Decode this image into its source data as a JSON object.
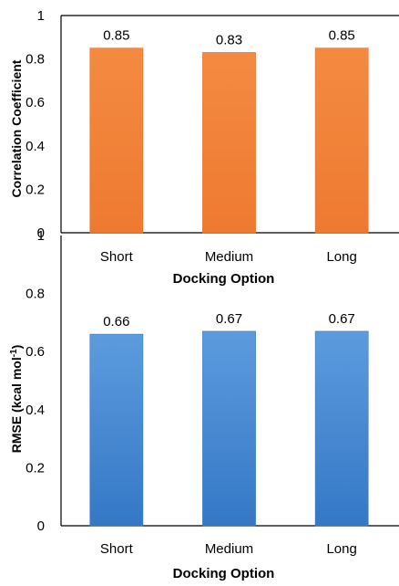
{
  "chart_data": [
    {
      "type": "bar",
      "categories": [
        "Short",
        "Medium",
        "Long"
      ],
      "values": [
        0.85,
        0.83,
        0.85
      ],
      "data_labels": [
        "0.85",
        "0.83",
        "0.85"
      ],
      "y_ticks": [
        "0",
        "0.2",
        "0.4",
        "0.6",
        "0.8",
        "1"
      ],
      "ylim": [
        0,
        1
      ],
      "xlabel": "Docking Option",
      "ylabel": "Correlation Coefficient",
      "bar_color": "#F0823A",
      "grid": false,
      "legend": "none"
    },
    {
      "type": "bar",
      "categories": [
        "Short",
        "Medium",
        "Long"
      ],
      "values": [
        0.66,
        0.67,
        0.67
      ],
      "data_labels": [
        "0.66",
        "0.67",
        "0.67"
      ],
      "y_ticks": [
        "0",
        "0.2",
        "0.4",
        "0.6",
        "0.8",
        "1"
      ],
      "ylim": [
        0,
        1
      ],
      "xlabel": "Docking Option",
      "ylabel_main": "RMSE (kcal mol",
      "ylabel_sup": "-1",
      "ylabel_end": ")",
      "bar_color": "#4A8AD0",
      "grid": false,
      "legend": "none"
    }
  ]
}
